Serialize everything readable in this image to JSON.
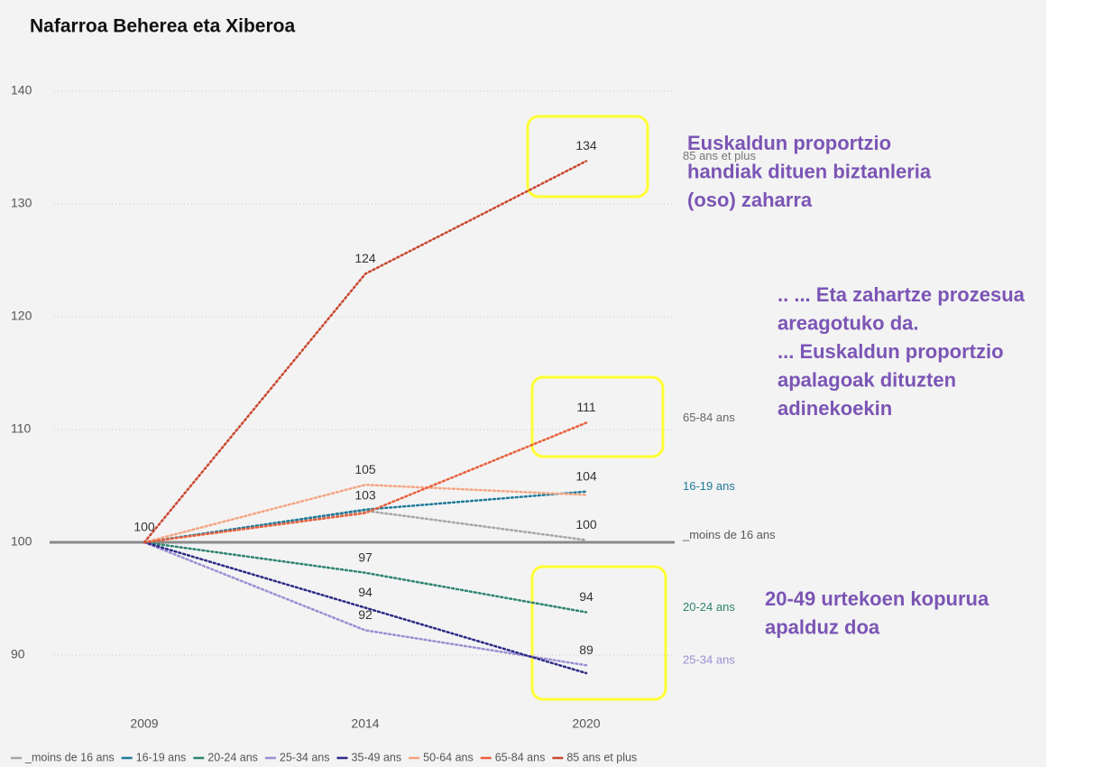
{
  "chart_data": {
    "type": "line",
    "title": "Nafarroa Beherea eta Xiberoa",
    "categories": [
      "2009",
      "2014",
      "2020"
    ],
    "ylim": [
      86,
      144
    ],
    "yticks": [
      90,
      100,
      110,
      120,
      130,
      140
    ],
    "grid": true,
    "baseline": 100,
    "series": [
      {
        "name": "_moins de 16 ans",
        "color": "#a6a6a6",
        "values": [
          100,
          102.8,
          100.2
        ],
        "value_labels": [
          "100",
          "103",
          "100"
        ],
        "end_label": true,
        "end_label_color": "#595959"
      },
      {
        "name": "16-19 ans",
        "color": "#1f7a99",
        "values": [
          100,
          102.9,
          104.5
        ],
        "value_labels": [
          null,
          null,
          "104"
        ],
        "end_label": true
      },
      {
        "name": "20-24 ans",
        "color": "#2e8470",
        "values": [
          100,
          97.3,
          93.8
        ],
        "value_labels": [
          null,
          "97",
          "94"
        ],
        "end_label": true
      },
      {
        "name": "25-34 ans",
        "color": "#9b8fd3",
        "values": [
          100,
          92.2,
          89.1
        ],
        "value_labels": [
          null,
          "92",
          "89"
        ],
        "end_label": true
      },
      {
        "name": "35-49 ans",
        "color": "#2d2a86",
        "values": [
          100,
          94.2,
          88.4
        ],
        "value_labels": [
          null,
          "94",
          null
        ]
      },
      {
        "name": "50-64 ans",
        "color": "#f4a582",
        "values": [
          100,
          105.1,
          104.2
        ],
        "value_labels": [
          null,
          "105",
          null
        ]
      },
      {
        "name": "65-84 ans",
        "color": "#e8603c",
        "values": [
          100,
          102.6,
          110.6
        ],
        "value_labels": [
          null,
          null,
          "111"
        ],
        "end_label": true,
        "end_label_color": "#666666"
      },
      {
        "name": "85 ans et plus",
        "color": "#c9472f",
        "values": [
          100,
          123.8,
          133.8
        ],
        "value_labels": [
          null,
          "124",
          "134"
        ],
        "end_label": true,
        "end_label_color": "#777777"
      }
    ],
    "annotations": [
      [
        "Euskaldun proportzio",
        "handiak dituen biztanleria",
        "(oso) zaharra"
      ],
      [
        ".. ... Eta zahartze prozesua",
        "areagotuko da.",
        "... Euskaldun proportzio",
        "apalagoak dituzten",
        "adinekoekin"
      ],
      [
        "20-49 urtekoen kopurua",
        "apalduz doa"
      ]
    ]
  }
}
